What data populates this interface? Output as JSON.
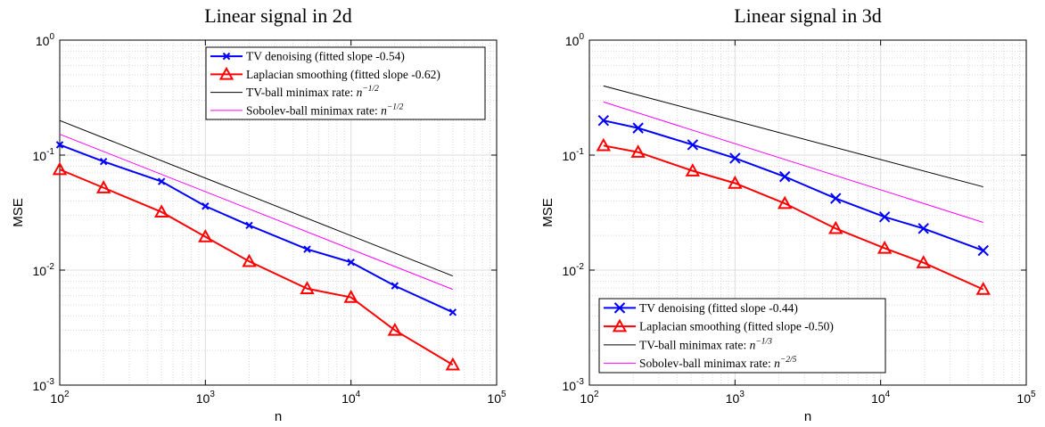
{
  "chart_data": [
    {
      "type": "line",
      "title": "Linear signal in 2d",
      "xlabel": "n",
      "ylabel": "MSE",
      "xscale": "log",
      "yscale": "log",
      "xlim": [
        100,
        100000
      ],
      "ylim": [
        0.001,
        1
      ],
      "grid": true,
      "legend_position": "top-right",
      "xtick_labels": [
        {
          "base": "10",
          "exp": "2"
        },
        {
          "base": "10",
          "exp": "3"
        },
        {
          "base": "10",
          "exp": "4"
        },
        {
          "base": "10",
          "exp": "5"
        }
      ],
      "ytick_labels": [
        {
          "base": "10",
          "exp": "-3"
        },
        {
          "base": "10",
          "exp": "-2"
        },
        {
          "base": "10",
          "exp": "-1"
        },
        {
          "base": "10",
          "exp": "0"
        }
      ],
      "series": [
        {
          "name": "TV denoising (fitted slope -0.54)",
          "color": "#0000ff",
          "marker": "x",
          "x": [
            100,
            200,
            500,
            1000,
            2000,
            5000,
            10000,
            20000,
            50000
          ],
          "y": [
            0.123,
            0.088,
            0.059,
            0.036,
            0.0245,
            0.0152,
            0.0117,
            0.0073,
            0.0043
          ]
        },
        {
          "name": "Laplacian smoothing (fitted slope -0.62)",
          "color": "#ff0000",
          "marker": "triangle",
          "x": [
            100,
            200,
            500,
            1000,
            2000,
            5000,
            10000,
            20000,
            50000
          ],
          "y": [
            0.075,
            0.052,
            0.032,
            0.0195,
            0.0119,
            0.0069,
            0.0058,
            0.003,
            0.0015
          ]
        },
        {
          "name": "TV-ball minimax rate: ",
          "math_base": "n",
          "math_exp": "−1/2",
          "color": "#000000",
          "marker": "none",
          "x": [
            100,
            50000
          ],
          "y": [
            0.2,
            0.0089
          ]
        },
        {
          "name": "Sobolev-ball minimax rate: ",
          "math_base": "n",
          "math_exp": "−1/2",
          "color": "#ff00ff",
          "marker": "none",
          "x": [
            100,
            50000
          ],
          "y": [
            0.152,
            0.0068
          ]
        }
      ]
    },
    {
      "type": "line",
      "title": "Linear signal in 3d",
      "xlabel": "n",
      "ylabel": "MSE",
      "xscale": "log",
      "yscale": "log",
      "xlim": [
        100,
        100000
      ],
      "ylim": [
        0.001,
        1
      ],
      "grid": true,
      "legend_position": "bottom-left",
      "xtick_labels": [
        {
          "base": "10",
          "exp": "2"
        },
        {
          "base": "10",
          "exp": "3"
        },
        {
          "base": "10",
          "exp": "4"
        },
        {
          "base": "10",
          "exp": "5"
        }
      ],
      "ytick_labels": [
        {
          "base": "10",
          "exp": "-3"
        },
        {
          "base": "10",
          "exp": "-2"
        },
        {
          "base": "10",
          "exp": "-1"
        },
        {
          "base": "10",
          "exp": "0"
        }
      ],
      "series": [
        {
          "name": "TV denoising (fitted slope -0.44)",
          "color": "#0000ff",
          "marker": "x",
          "x": [
            125,
            216,
            512,
            1000,
            2197,
            4913,
            10648,
            19683,
            50653
          ],
          "y": [
            0.2,
            0.172,
            0.123,
            0.094,
            0.065,
            0.042,
            0.029,
            0.023,
            0.0148
          ]
        },
        {
          "name": "Laplacian smoothing (fitted slope -0.50)",
          "color": "#ff0000",
          "marker": "triangle",
          "x": [
            125,
            216,
            512,
            1000,
            2197,
            4913,
            10648,
            19683,
            50653
          ],
          "y": [
            0.121,
            0.106,
            0.073,
            0.057,
            0.038,
            0.023,
            0.0155,
            0.0116,
            0.0068
          ]
        },
        {
          "name": "TV-ball minimax rate: ",
          "math_base": "n",
          "math_exp": "−1/3",
          "color": "#000000",
          "marker": "none",
          "x": [
            125,
            50653
          ],
          "y": [
            0.4,
            0.053
          ]
        },
        {
          "name": "Sobolev-ball minimax rate: ",
          "math_base": "n",
          "math_exp": "−2/5",
          "color": "#ff00ff",
          "marker": "none",
          "x": [
            125,
            50653
          ],
          "y": [
            0.29,
            0.026
          ]
        }
      ]
    }
  ]
}
